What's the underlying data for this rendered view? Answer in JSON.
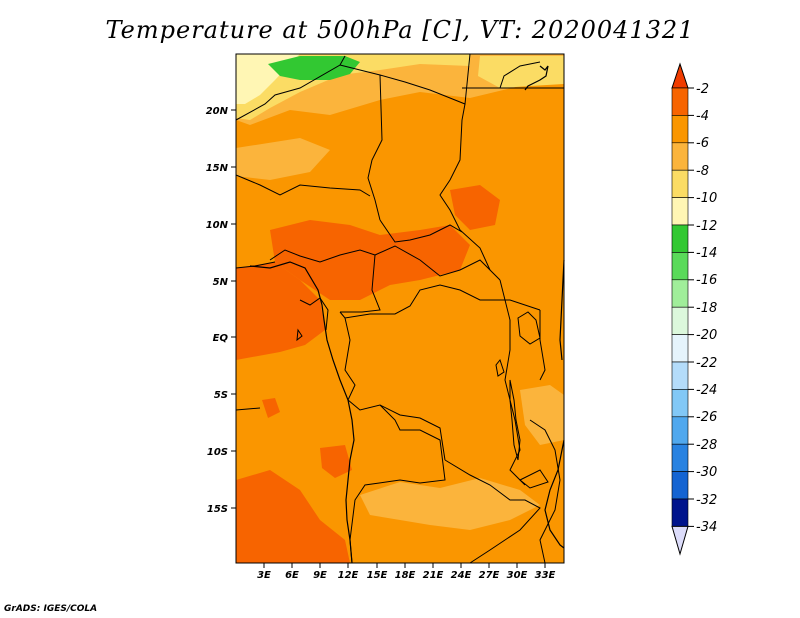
{
  "title": "Temperature at 500hPa [C], VT: 2020041321",
  "footer": "GrADS: IGES/COLA",
  "axes": {
    "lat_labels": [
      "20N",
      "15N",
      "10N",
      "5N",
      "EQ",
      "5S",
      "10S",
      "15S"
    ],
    "lon_labels": [
      "3E",
      "6E",
      "9E",
      "12E",
      "15E",
      "18E",
      "21E",
      "24E",
      "27E",
      "30E",
      "33E"
    ]
  },
  "colorbar": {
    "labels": [
      "-2",
      "-4",
      "-6",
      "-8",
      "-10",
      "-12",
      "-14",
      "-16",
      "-18",
      "-20",
      "-22",
      "-24",
      "-26",
      "-28",
      "-30",
      "-32",
      "-34"
    ],
    "colors": [
      "#f03c00",
      "#f76400",
      "#fa9600",
      "#fbb43c",
      "#fbdc64",
      "#fff6b4",
      "#32c832",
      "#5ada5a",
      "#a0ee9a",
      "#dcf8dc",
      "#e6f4fc",
      "#b4dcfa",
      "#82c8f6",
      "#50a8ee",
      "#2882e1",
      "#1464d2",
      "#0a46c3",
      "#00148c",
      "#dcdcfa"
    ]
  },
  "map_colors": {
    "dominant": "#fa9600",
    "warm": "#f76400",
    "cool": "#fbb43c",
    "cooler": "#fbdc64",
    "coolest": "#fff6b4",
    "green": "#32c832",
    "border": "#000000"
  }
}
